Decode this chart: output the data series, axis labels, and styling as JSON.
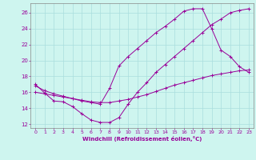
{
  "xlabel": "Windchill (Refroidissement éolien,°C)",
  "bg_color": "#cef5ef",
  "line_color": "#990099",
  "grid_color": "#aadddd",
  "xlim": [
    -0.5,
    23.5
  ],
  "ylim": [
    11.5,
    27.2
  ],
  "xticks": [
    0,
    1,
    2,
    3,
    4,
    5,
    6,
    7,
    8,
    9,
    10,
    11,
    12,
    13,
    14,
    15,
    16,
    17,
    18,
    19,
    20,
    21,
    22,
    23
  ],
  "yticks": [
    12,
    14,
    16,
    18,
    20,
    22,
    24,
    26
  ],
  "curve1_x": [
    0,
    1,
    2,
    3,
    4,
    5,
    6,
    7,
    8,
    9,
    10,
    11,
    12,
    13,
    14,
    15,
    16,
    17,
    18,
    19,
    20,
    21,
    22,
    23
  ],
  "curve1_y": [
    17.0,
    15.9,
    14.9,
    14.8,
    14.2,
    13.3,
    12.5,
    12.2,
    12.2,
    12.8,
    14.5,
    16.0,
    17.2,
    18.5,
    19.5,
    20.5,
    21.5,
    22.5,
    23.5,
    24.5,
    25.2,
    26.0,
    26.3,
    26.5
  ],
  "curve2_x": [
    0,
    1,
    2,
    3,
    4,
    5,
    6,
    7,
    8,
    9,
    10,
    11,
    12,
    13,
    14,
    15,
    16,
    17,
    18,
    19,
    20,
    21,
    22,
    23
  ],
  "curve2_y": [
    16.8,
    16.2,
    15.8,
    15.5,
    15.2,
    14.9,
    14.7,
    14.5,
    16.5,
    19.3,
    20.5,
    21.5,
    22.5,
    23.5,
    24.3,
    25.2,
    26.2,
    26.5,
    26.5,
    24.0,
    21.3,
    20.5,
    19.2,
    18.5
  ],
  "curve3_x": [
    0,
    1,
    2,
    3,
    4,
    5,
    6,
    7,
    8,
    9,
    10,
    11,
    12,
    13,
    14,
    15,
    16,
    17,
    18,
    19,
    20,
    21,
    22,
    23
  ],
  "curve3_y": [
    16.0,
    15.8,
    15.6,
    15.4,
    15.2,
    15.0,
    14.8,
    14.7,
    14.7,
    14.9,
    15.1,
    15.4,
    15.7,
    16.1,
    16.5,
    16.9,
    17.2,
    17.5,
    17.8,
    18.1,
    18.3,
    18.5,
    18.7,
    18.8
  ]
}
